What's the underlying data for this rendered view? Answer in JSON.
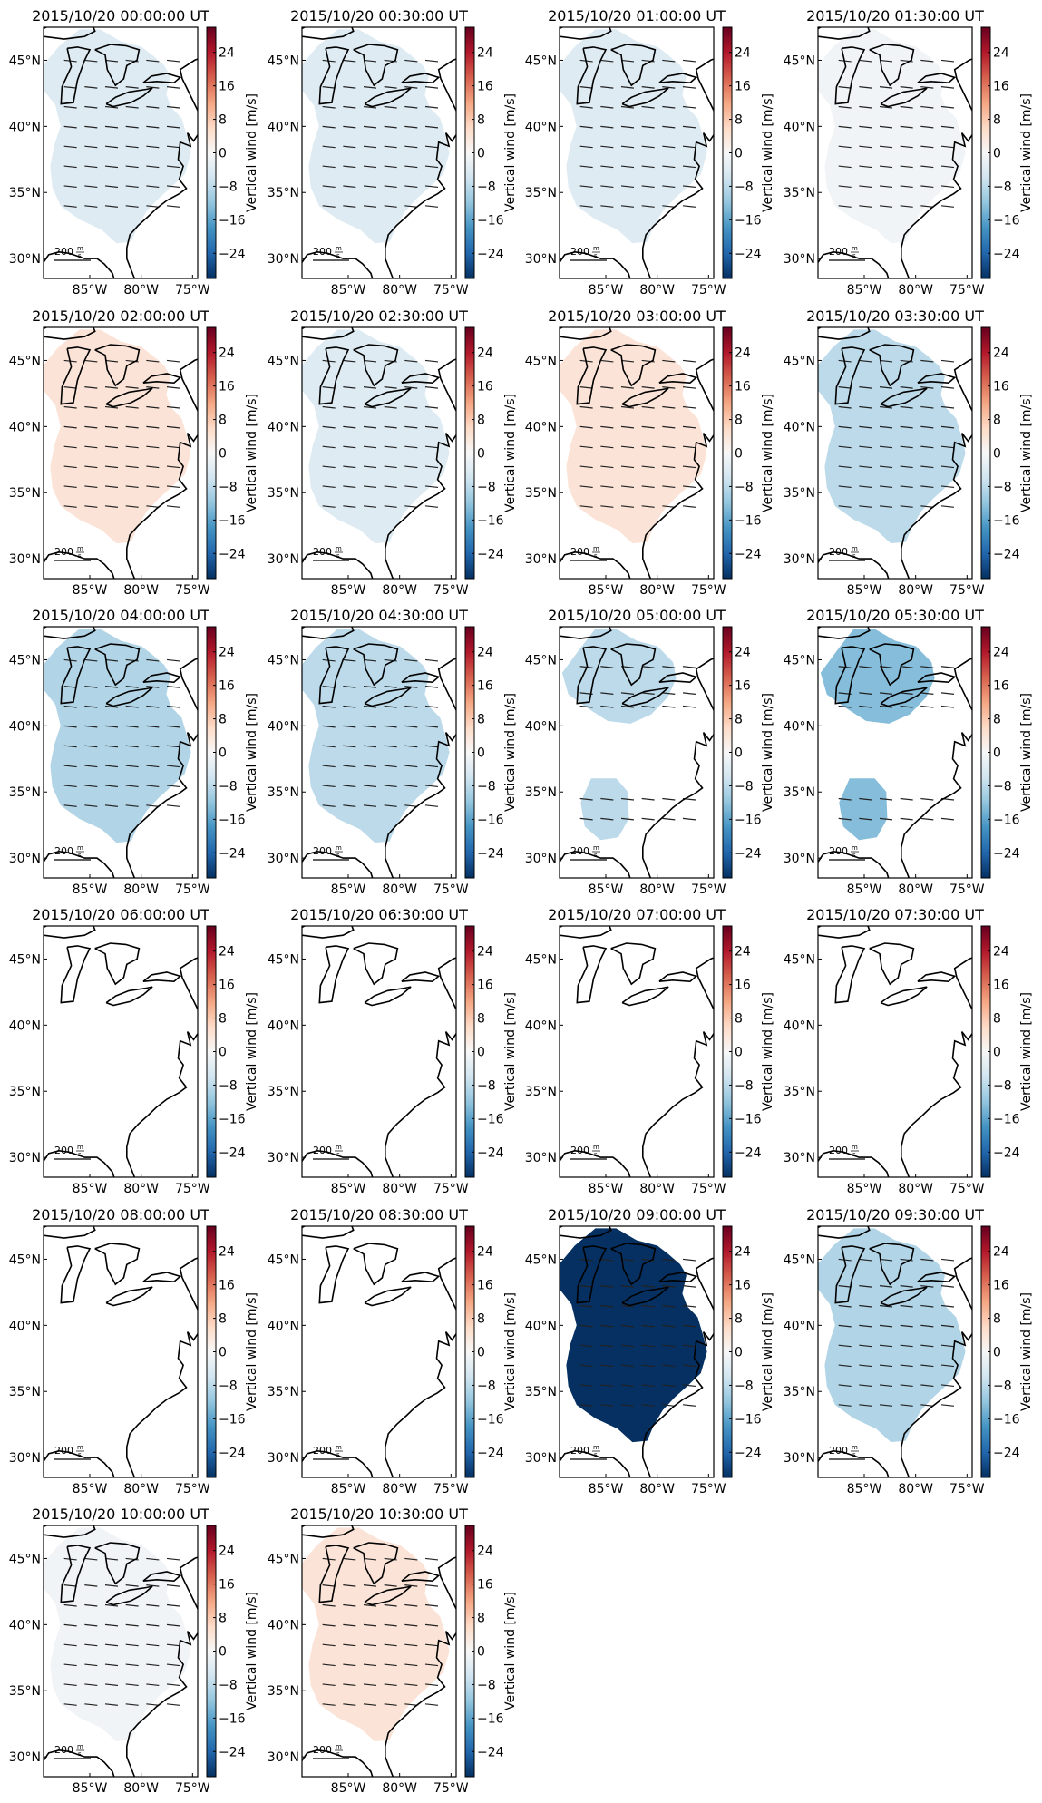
{
  "figure": {
    "scale_label": "200",
    "scale_unit_num": "m",
    "scale_unit_den": "s"
  },
  "chart_data": {
    "type": "heatmap",
    "description_units": "Vertical wind in m/s over eastern North America",
    "colorbar": {
      "label": "Vertical wind [m/s]",
      "ticks": [
        24,
        16,
        8,
        0,
        -8,
        -16,
        -24
      ],
      "range": [
        -30,
        30
      ],
      "colormap": "RdBu_r"
    },
    "axes": {
      "x_ticks": [
        "85°W",
        "80°W",
        "75°W"
      ],
      "x_tick_values": [
        -85,
        -80,
        -75
      ],
      "y_ticks": [
        "45°N",
        "40°N",
        "35°N",
        "30°N"
      ],
      "y_tick_values": [
        45,
        40,
        35,
        30
      ],
      "lon_range": [
        -89.5,
        -74.5
      ],
      "lat_range": [
        28.5,
        47.5
      ]
    },
    "panels": [
      {
        "title": "2015/10/20 00:00:00 UT",
        "vertical_wind": -4,
        "coverage": "full"
      },
      {
        "title": "2015/10/20 00:30:00 UT",
        "vertical_wind": -4,
        "coverage": "full"
      },
      {
        "title": "2015/10/20 01:00:00 UT",
        "vertical_wind": -4,
        "coverage": "full"
      },
      {
        "title": "2015/10/20 01:30:00 UT",
        "vertical_wind": -1,
        "coverage": "full"
      },
      {
        "title": "2015/10/20 02:00:00 UT",
        "vertical_wind": 4,
        "coverage": "full"
      },
      {
        "title": "2015/10/20 02:30:00 UT",
        "vertical_wind": -4,
        "coverage": "full"
      },
      {
        "title": "2015/10/20 03:00:00 UT",
        "vertical_wind": 4,
        "coverage": "full"
      },
      {
        "title": "2015/10/20 03:30:00 UT",
        "vertical_wind": -8,
        "coverage": "full"
      },
      {
        "title": "2015/10/20 04:00:00 UT",
        "vertical_wind": -9,
        "coverage": "full"
      },
      {
        "title": "2015/10/20 04:30:00 UT",
        "vertical_wind": -8,
        "coverage": "full"
      },
      {
        "title": "2015/10/20 05:00:00 UT",
        "vertical_wind": -8,
        "coverage": "split"
      },
      {
        "title": "2015/10/20 05:30:00 UT",
        "vertical_wind": -13,
        "coverage": "split"
      },
      {
        "title": "2015/10/20 06:00:00 UT",
        "vertical_wind": null,
        "coverage": "none"
      },
      {
        "title": "2015/10/20 06:30:00 UT",
        "vertical_wind": null,
        "coverage": "none"
      },
      {
        "title": "2015/10/20 07:00:00 UT",
        "vertical_wind": null,
        "coverage": "none"
      },
      {
        "title": "2015/10/20 07:30:00 UT",
        "vertical_wind": null,
        "coverage": "none"
      },
      {
        "title": "2015/10/20 08:00:00 UT",
        "vertical_wind": null,
        "coverage": "none"
      },
      {
        "title": "2015/10/20 08:30:00 UT",
        "vertical_wind": null,
        "coverage": "none"
      },
      {
        "title": "2015/10/20 09:00:00 UT",
        "vertical_wind": -30,
        "coverage": "full"
      },
      {
        "title": "2015/10/20 09:30:00 UT",
        "vertical_wind": -9,
        "coverage": "full"
      },
      {
        "title": "2015/10/20 10:00:00 UT",
        "vertical_wind": -1,
        "coverage": "full"
      },
      {
        "title": "2015/10/20 10:30:00 UT",
        "vertical_wind": 4,
        "coverage": "full"
      }
    ]
  }
}
